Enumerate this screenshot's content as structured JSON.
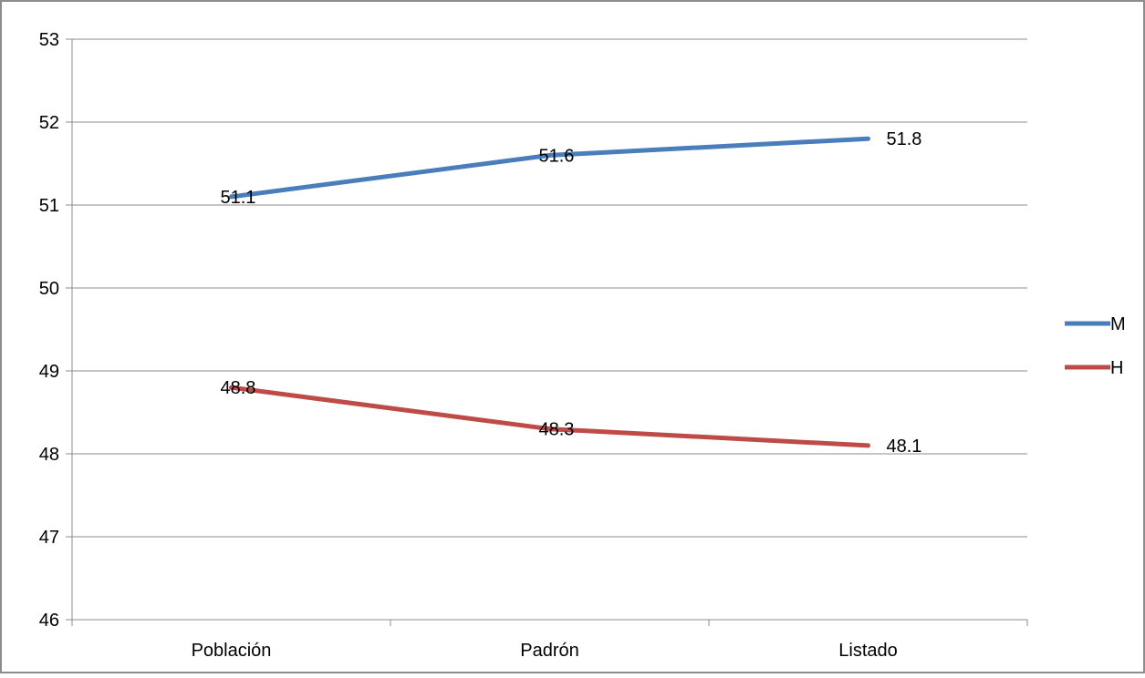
{
  "chart_data": {
    "type": "line",
    "categories": [
      "Población",
      "Padrón",
      "Listado"
    ],
    "series": [
      {
        "name": "M",
        "values": [
          51.1,
          51.6,
          51.8
        ],
        "color": "#4a7ebb"
      },
      {
        "name": "H",
        "values": [
          48.8,
          48.3,
          48.1
        ],
        "color": "#be4b48"
      }
    ],
    "title": "",
    "xlabel": "",
    "ylabel": "",
    "ylim": [
      46,
      53
    ],
    "yticks": [
      46,
      47,
      48,
      49,
      50,
      51,
      52,
      53
    ],
    "grid": true,
    "legend_position": "right",
    "data_labels": true
  }
}
